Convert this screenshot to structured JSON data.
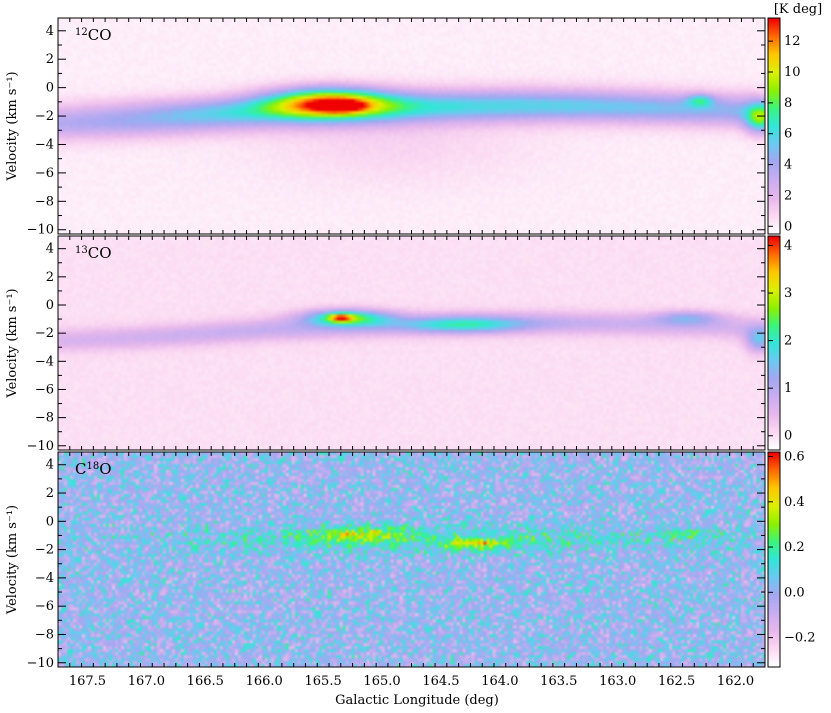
{
  "chart_data": {
    "type": "heatmap",
    "xlabel": "Galactic Longitude (deg)",
    "ylabel": "Velocity (km s⁻¹)",
    "xlim": [
      167.75,
      161.75
    ],
    "ylim": [
      -10.3,
      4.9
    ],
    "x_ticks": [
      167.5,
      167.0,
      166.5,
      166.0,
      165.5,
      165.0,
      164.5,
      164.0,
      163.5,
      163.0,
      162.5,
      162.0
    ],
    "x_tick_labels": [
      "167.5",
      "167.0",
      "166.5",
      "166.0",
      "165.5",
      "165.0",
      "164.5",
      "164.0",
      "163.5",
      "163.0",
      "162.5",
      "162.0"
    ],
    "y_ticks": [
      4,
      2,
      0,
      -2,
      -4,
      -6,
      -8,
      -10
    ],
    "y_tick_labels": [
      "4",
      "2",
      "0",
      "−2",
      "−4",
      "−6",
      "−8",
      "−10"
    ],
    "colorbar_unit": "[K deg]",
    "colormap": [
      "#ffffff",
      "#fbd8f2",
      "#e7b8ec",
      "#c8aef0",
      "#a5a7f0",
      "#6cc9f0",
      "#33e6d8",
      "#3cf47c",
      "#8ff000",
      "#dcf000",
      "#ffc800",
      "#ff6a00",
      "#f00000"
    ],
    "panels": [
      {
        "title_base": "CO",
        "title_sup": "12",
        "title_sup_position": "before",
        "vmin": -0.5,
        "vmax": 13.5,
        "cb_ticks": [
          0,
          2,
          4,
          6,
          8,
          10,
          12
        ],
        "cb_tick_labels": [
          "0",
          "2",
          "4",
          "6",
          "8",
          "10",
          "12"
        ],
        "peak": 13,
        "noise": 0.15
      },
      {
        "title_base": "CO",
        "title_sup": "13",
        "title_sup_position": "before",
        "vmin": -0.3,
        "vmax": 4.2,
        "cb_ticks": [
          0,
          1,
          2,
          3,
          4
        ],
        "cb_tick_labels": [
          "0",
          "1",
          "2",
          "3",
          "4"
        ],
        "peak": 4.0,
        "noise": 0.05
      },
      {
        "title_base": "C",
        "title_sup": "18",
        "title_after": "O",
        "title_sup_position": "middle",
        "vmin": -0.33,
        "vmax": 0.62,
        "cb_ticks": [
          -0.2,
          0.0,
          0.2,
          0.4,
          0.6
        ],
        "cb_tick_labels": [
          "−0.2",
          "0.0",
          "0.2",
          "0.4",
          "0.6"
        ],
        "peak": 0.6,
        "noise": 0.09
      }
    ]
  }
}
